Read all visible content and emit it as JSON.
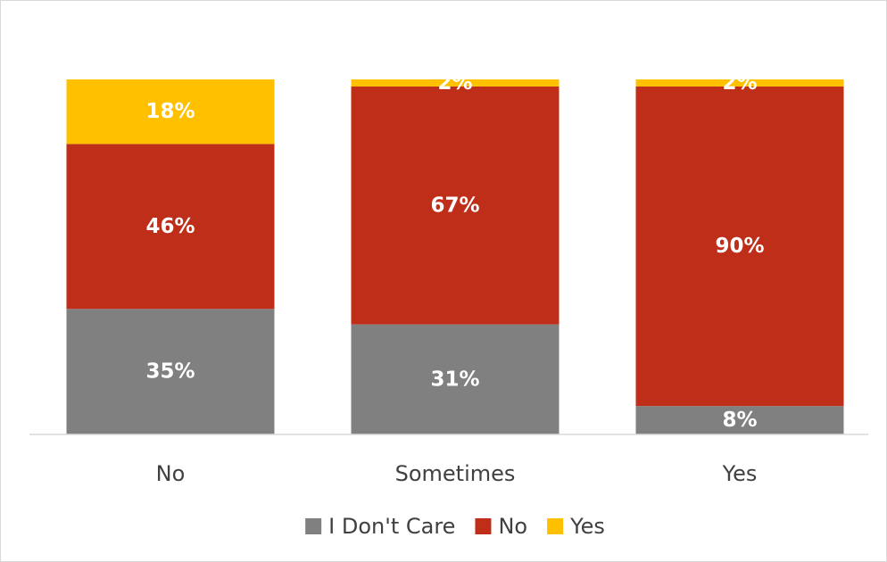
{
  "chart_data": {
    "type": "bar",
    "stacked": true,
    "normalized": true,
    "categories": [
      "No",
      "Sometimes",
      "Yes"
    ],
    "series": [
      {
        "name": "I Don't Care",
        "color": "#808080",
        "values": [
          35,
          31,
          8
        ]
      },
      {
        "name": "No",
        "color": "#be2e19",
        "values": [
          46,
          67,
          90
        ]
      },
      {
        "name": "Yes",
        "color": "#ffc000",
        "values": [
          18,
          2,
          2
        ]
      }
    ],
    "value_suffix": "%",
    "ylim": [
      0,
      100
    ],
    "grid": false,
    "legend_position": "bottom"
  }
}
